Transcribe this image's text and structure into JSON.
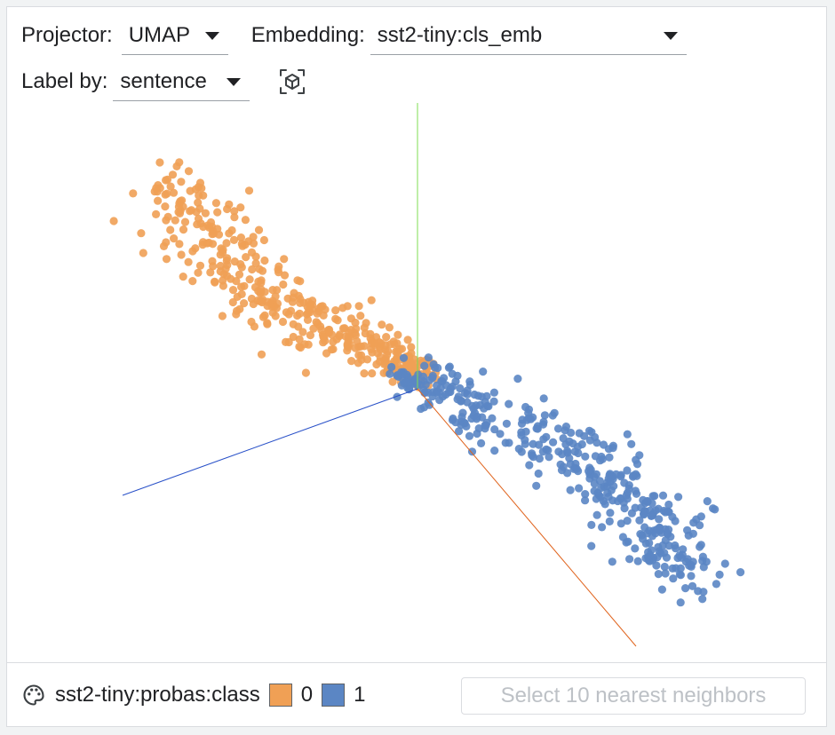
{
  "controls": {
    "projector_label": "Projector:",
    "projector_value": "UMAP",
    "embedding_label": "Embedding:",
    "embedding_value": "sst2-tiny:cls_emb",
    "label_by_label": "Label by:",
    "label_by_value": "sentence",
    "reset_view_icon": "cube-focus-icon"
  },
  "footer": {
    "palette_icon": "palette-icon",
    "color_by": "sst2-tiny:probas:class",
    "legend": [
      {
        "label": "0",
        "color": "#f0a055"
      },
      {
        "label": "1",
        "color": "#5b86c4"
      }
    ],
    "nearest_neighbors_button": "Select 10 nearest neighbors",
    "nearest_neighbors_enabled": false
  },
  "chart_data": {
    "type": "scatter",
    "projection": "3d",
    "axes": [
      {
        "axis": "x",
        "color": "#e0641e"
      },
      {
        "axis": "y",
        "color": "#7fdc50"
      },
      {
        "axis": "z",
        "color": "#2850c8"
      }
    ],
    "series": [
      {
        "name": "0",
        "color": "#f0a055",
        "approx_points": 420
      },
      {
        "name": "1",
        "color": "#5b86c4",
        "approx_points": 420
      }
    ]
  }
}
